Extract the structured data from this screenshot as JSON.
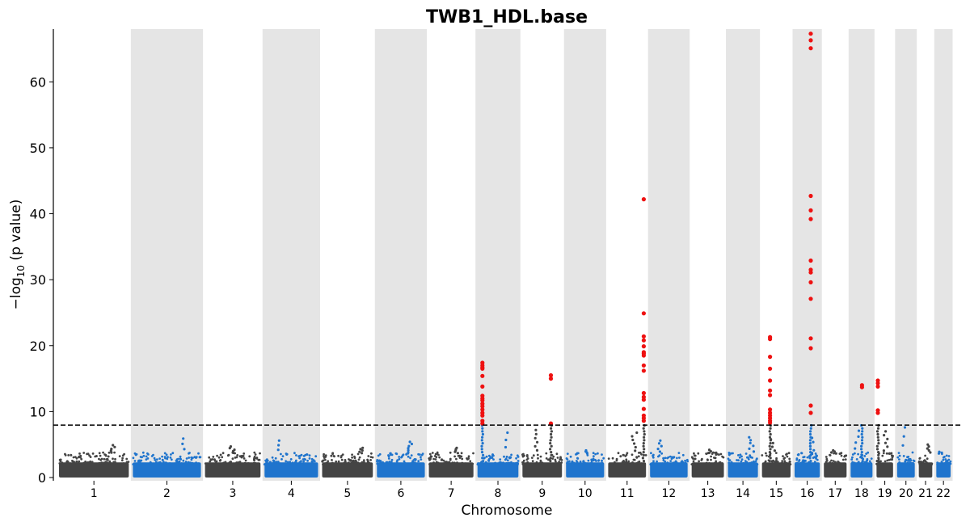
{
  "chart_data": {
    "type": "scatter",
    "subtype": "manhattan",
    "title": "TWB1_HDL.base",
    "xlabel": "Chromosome",
    "ylabel": "−log",
    "ylabel_sub": "10",
    "ylabel_rest": " (p value)",
    "ylim": [
      0,
      68
    ],
    "yticks": [
      0,
      10,
      20,
      30,
      40,
      50,
      60
    ],
    "threshold": 7.95,
    "grid": false,
    "colors": {
      "odd_chromosomes": "#444444",
      "even_chromosomes": "#1f74cd",
      "significant": "#ee1111",
      "even_band": "#e5e5e5",
      "threshold_line": "#000000"
    },
    "chromosomes": [
      {
        "label": "1",
        "length": 249,
        "peak": 4.9
      },
      {
        "label": "2",
        "length": 243,
        "peak": 5.9
      },
      {
        "label": "3",
        "length": 198,
        "peak": 4.7
      },
      {
        "label": "4",
        "length": 191,
        "peak": 5.6
      },
      {
        "label": "5",
        "length": 181,
        "peak": 4.5
      },
      {
        "label": "6",
        "length": 171,
        "peak": 5.4
      },
      {
        "label": "7",
        "length": 159,
        "peak": 4.5
      },
      {
        "label": "8",
        "length": 146,
        "peak": 6.8
      },
      {
        "label": "9",
        "length": 141,
        "peak": 7.2
      },
      {
        "label": "10",
        "length": 136,
        "peak": 4.1
      },
      {
        "label": "11",
        "length": 135,
        "peak": 6.8
      },
      {
        "label": "12",
        "length": 134,
        "peak": 5.6
      },
      {
        "label": "13",
        "length": 115,
        "peak": 4.2
      },
      {
        "label": "14",
        "length": 107,
        "peak": 6.1
      },
      {
        "label": "15",
        "length": 102,
        "peak": 5.8
      },
      {
        "label": "16",
        "length": 90,
        "peak": 6.0
      },
      {
        "label": "17",
        "length": 81,
        "peak": 4.1
      },
      {
        "label": "18",
        "length": 78,
        "peak": 7.1
      },
      {
        "label": "19",
        "length": 59,
        "peak": 7.0
      },
      {
        "label": "20",
        "length": 63,
        "peak": 7.6
      },
      {
        "label": "21",
        "length": 48,
        "peak": 5.0
      },
      {
        "label": "22",
        "length": 51,
        "peak": 3.9
      }
    ],
    "significant_points": [
      {
        "chr": "8",
        "pos": 0.12,
        "values": [
          17.4,
          17.0,
          16.7,
          16.5,
          15.4,
          13.8,
          12.4,
          12.0,
          11.7,
          11.2,
          10.8,
          10.3,
          9.8,
          9.4,
          8.6,
          8.2
        ]
      },
      {
        "chr": "9",
        "pos": 0.72,
        "values": [
          15.5,
          15.0,
          8.2
        ]
      },
      {
        "chr": "11",
        "pos": 0.94,
        "values": [
          42.2,
          24.9,
          21.4,
          20.8,
          19.9,
          19.0,
          18.8,
          18.5,
          17.0,
          16.2,
          12.8,
          12.2,
          11.8,
          10.4,
          9.4,
          9.0,
          8.6
        ]
      },
      {
        "chr": "15",
        "pos": 0.28,
        "values": [
          21.3,
          21.0,
          18.3,
          16.5,
          14.7,
          13.2,
          12.5,
          10.3,
          9.8,
          9.4,
          9.0,
          8.6,
          8.3
        ]
      },
      {
        "chr": "16",
        "pos": 0.64,
        "values": [
          67.3,
          66.3,
          65.1,
          42.7,
          40.5,
          39.2,
          32.9,
          31.5,
          31.1,
          29.6,
          27.1,
          21.1,
          19.6,
          10.9,
          9.8
        ]
      },
      {
        "chr": "18",
        "pos": 0.52,
        "values": [
          14.0,
          13.7
        ]
      },
      {
        "chr": "19",
        "pos": 0.08,
        "values": [
          14.7,
          14.3,
          13.8,
          10.2,
          9.8
        ]
      }
    ]
  }
}
